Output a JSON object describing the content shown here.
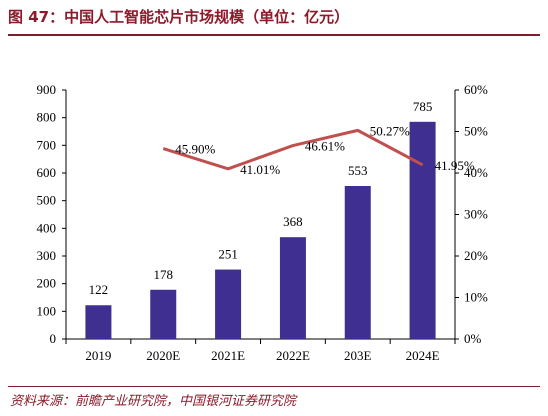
{
  "header": {
    "title": "图 47：中国人工智能芯片市场规模（单位：亿元）"
  },
  "footer": {
    "source": "资料来源：前瞻产业研究院，中国银河证券研究院"
  },
  "chart_data": {
    "type": "bar",
    "title": "图 47：中国人工智能芯片市场规模（单位：亿元）",
    "categories": [
      "2019",
      "2020E",
      "2021E",
      "2022E",
      "203E",
      "2024E"
    ],
    "series": [
      {
        "type": "bar",
        "axis": "left",
        "values": [
          122,
          178,
          251,
          368,
          553,
          785
        ],
        "labels": [
          "122",
          "178",
          "251",
          "368",
          "553",
          "785"
        ],
        "color": "#3f2f91"
      },
      {
        "type": "line",
        "axis": "right",
        "values": [
          null,
          45.9,
          41.01,
          46.61,
          50.27,
          41.95
        ],
        "labels": [
          "",
          "45.90%",
          "41.01%",
          "46.61%",
          "50.27%",
          "41.95%"
        ],
        "color": "#c0504d"
      }
    ],
    "y_left": {
      "min": 0,
      "max": 900,
      "step": 100,
      "ticks": [
        "0",
        "100",
        "200",
        "300",
        "400",
        "500",
        "600",
        "700",
        "800",
        "900"
      ]
    },
    "y_right": {
      "min": 0,
      "max": 60,
      "step": 10,
      "ticks": [
        "0%",
        "10%",
        "20%",
        "30%",
        "40%",
        "50%",
        "60%"
      ]
    },
    "grid": false,
    "legend": "none"
  }
}
